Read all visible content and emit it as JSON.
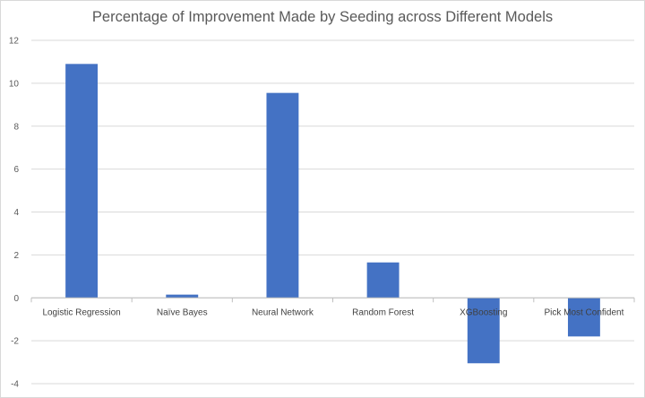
{
  "chart_data": {
    "type": "bar",
    "title": "Percentage of Improvement Made by Seeding across Different Models",
    "xlabel": "",
    "ylabel": "",
    "categories": [
      "Logistic Regression",
      "Naïve Bayes",
      "Neural Network",
      "Random Forest",
      "XGBoosting",
      "Pick Most Confident"
    ],
    "values": [
      10.9,
      0.15,
      9.55,
      1.65,
      -3.05,
      -1.8
    ],
    "ylim": [
      -4,
      12
    ],
    "yticks": [
      -4,
      -2,
      0,
      2,
      4,
      6,
      8,
      10,
      12
    ],
    "grid": true,
    "legend": "none",
    "bar_color": "#4472c4",
    "grid_color": "#d9d9d9",
    "axis_color": "#bfbfbf"
  }
}
